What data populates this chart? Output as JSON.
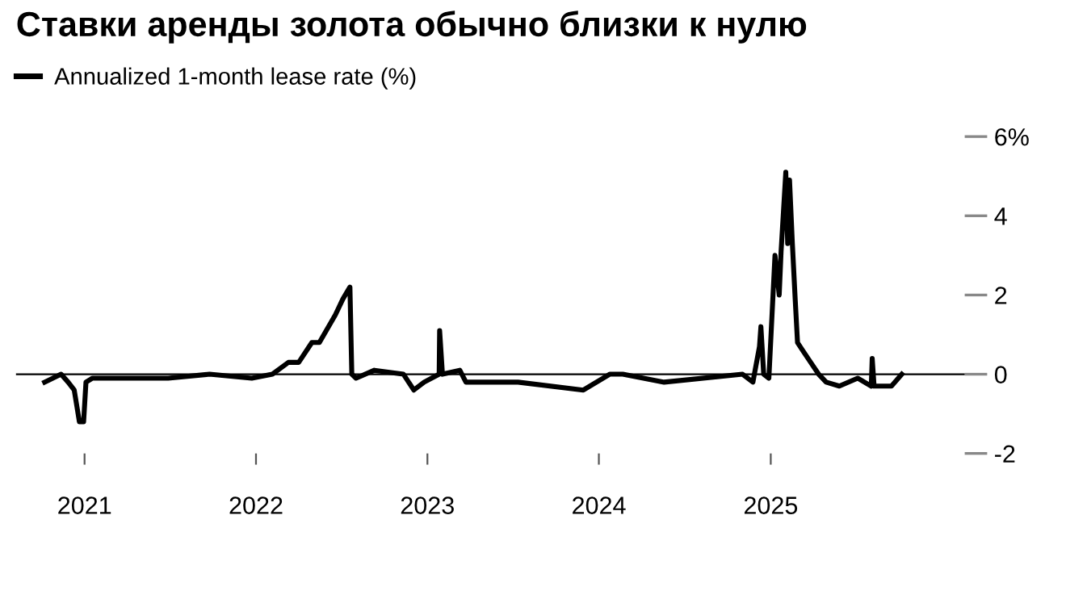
{
  "chart_data": {
    "type": "line",
    "title": "Ставки аренды золота обычно близки к нулю",
    "x": [
      "2020-10-08",
      "2020-11-12",
      "2020-11-27",
      "2020-12-10",
      "2020-12-21",
      "2020-12-30",
      "2021-01-04",
      "2021-01-18",
      "2021-03-31",
      "2021-06-28",
      "2021-09-24",
      "2021-12-23",
      "2022-02-05",
      "2022-03-11",
      "2022-04-02",
      "2022-04-30",
      "2022-05-16",
      "2022-06-19",
      "2022-07-05",
      "2022-07-20",
      "2022-07-24",
      "2022-08-02",
      "2022-09-10",
      "2022-11-11",
      "2022-12-03",
      "2022-12-25",
      "2023-01-26",
      "2023-01-27",
      "2023-02-02",
      "2023-03-11",
      "2023-03-24",
      "2023-07-13",
      "2023-11-29",
      "2024-01-24",
      "2024-02-21",
      "2024-05-19",
      "2024-11-02",
      "2024-11-24",
      "2024-12-08",
      "2024-12-11",
      "2024-12-17",
      "2024-12-28",
      "2025-01-10",
      "2025-01-19",
      "2025-01-23",
      "2025-02-02",
      "2025-02-06",
      "2025-02-10",
      "2025-02-16",
      "2025-02-22",
      "2025-02-27",
      "2025-03-10",
      "2025-03-27",
      "2025-04-13",
      "2025-04-29",
      "2025-05-27",
      "2025-07-05",
      "2025-08-03",
      "2025-08-05",
      "2025-08-09",
      "2025-09-15",
      "2025-10-07"
    ],
    "series": [
      {
        "name": "Annualized 1-month lease rate (%)",
        "color": "#000000",
        "values": [
          -0.2,
          0.0,
          -0.2,
          -0.4,
          -1.2,
          -1.2,
          -0.2,
          -0.1,
          -0.1,
          -0.1,
          0.0,
          -0.1,
          0.0,
          0.3,
          0.3,
          0.8,
          0.8,
          1.5,
          1.9,
          2.2,
          0.0,
          -0.1,
          0.1,
          0.0,
          -0.4,
          -0.2,
          0.0,
          1.1,
          0.0,
          0.1,
          -0.2,
          -0.2,
          -0.4,
          0.0,
          0.0,
          -0.2,
          0.0,
          -0.2,
          0.7,
          1.2,
          0.0,
          -0.1,
          3.0,
          2.0,
          3.1,
          5.1,
          3.3,
          4.9,
          3.3,
          1.9,
          0.8,
          0.6,
          0.3,
          0.0,
          -0.2,
          -0.3,
          -0.1,
          -0.3,
          0.4,
          -0.3,
          -0.3,
          0.0
        ]
      }
    ],
    "xlim": [
      "2020-08-08",
      "2026-02-18"
    ],
    "xticks": [
      {
        "value": "2021-01-01",
        "label": "2021"
      },
      {
        "value": "2022-01-01",
        "label": "2022"
      },
      {
        "value": "2023-01-01",
        "label": "2023"
      },
      {
        "value": "2024-01-01",
        "label": "2024"
      },
      {
        "value": "2025-01-01",
        "label": "2025"
      }
    ],
    "ylim": [
      -2,
      6
    ],
    "yticks": [
      {
        "value": 6,
        "label": "6%"
      },
      4,
      2,
      0,
      -2
    ],
    "ref_lines": [
      {
        "axis": "y",
        "value": 0,
        "color": "#000000"
      }
    ],
    "legend": "top left",
    "grid": false,
    "marker": "none",
    "line_style": "solid"
  }
}
